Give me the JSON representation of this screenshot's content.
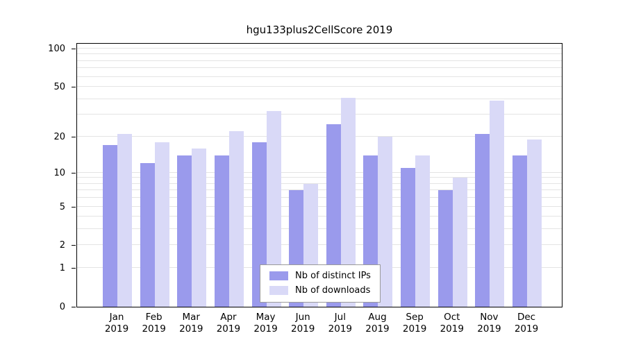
{
  "chart_data": {
    "type": "bar",
    "title": "hgu133plus2CellScore 2019",
    "categories": [
      "Jan",
      "Feb",
      "Mar",
      "Apr",
      "May",
      "Jun",
      "Jul",
      "Aug",
      "Sep",
      "Oct",
      "Nov",
      "Dec"
    ],
    "year": "2019",
    "series": [
      {
        "name": "Nb of distinct IPs",
        "color": "#9a9aec",
        "values": [
          17,
          12,
          14,
          14,
          18,
          7,
          25,
          14,
          11,
          7,
          21,
          14
        ]
      },
      {
        "name": "Nb of downloads",
        "color": "#d9d9f7",
        "values": [
          21,
          18,
          16,
          22,
          32,
          8,
          41,
          20,
          14,
          9,
          39,
          19
        ]
      }
    ],
    "y_ticks": [
      0,
      1,
      2,
      5,
      10,
      20,
      50,
      100
    ],
    "y_scale": "log1p",
    "ylim": [
      0,
      100
    ],
    "gridlines": [
      1,
      2,
      3,
      4,
      5,
      6,
      7,
      8,
      9,
      10,
      20,
      30,
      40,
      50,
      60,
      70,
      80,
      90,
      100
    ],
    "grid": true,
    "legend_position": "bottom-center-inside"
  }
}
